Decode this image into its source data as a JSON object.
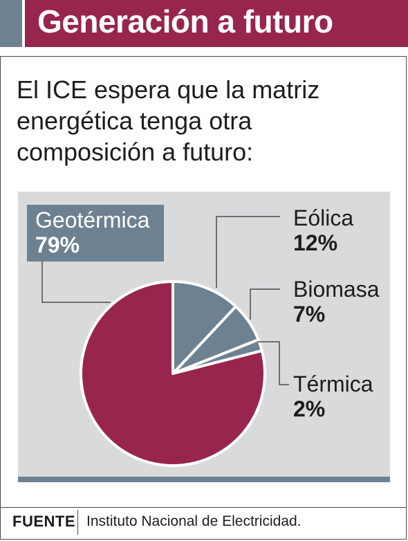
{
  "header": {
    "title": "Generación a futuro"
  },
  "intro": {
    "text": "El ICE espera que la matriz energética tenga otra composición a futuro:"
  },
  "chart_data": {
    "type": "pie",
    "unit": "%",
    "slices": [
      {
        "label": "Eólica",
        "value": 12,
        "display": "12%",
        "color": "#6e8190"
      },
      {
        "label": "Biomasa",
        "value": 7,
        "display": "7%",
        "color": "#6e8190"
      },
      {
        "label": "Térmica",
        "value": 2,
        "display": "2%",
        "color": "#6e8190"
      },
      {
        "label": "Geotérmica",
        "value": 79,
        "display": "79%",
        "color": "#98254d"
      }
    ],
    "start_angle": "12 o'clock, clockwise",
    "legend": "callout labels"
  },
  "footer": {
    "source_label": "FUENTE",
    "source_text": "Instituto Nacional de Electricidad."
  },
  "colors": {
    "accent": "#98254d",
    "slate": "#6e8190",
    "panel": "#d9dadc"
  }
}
